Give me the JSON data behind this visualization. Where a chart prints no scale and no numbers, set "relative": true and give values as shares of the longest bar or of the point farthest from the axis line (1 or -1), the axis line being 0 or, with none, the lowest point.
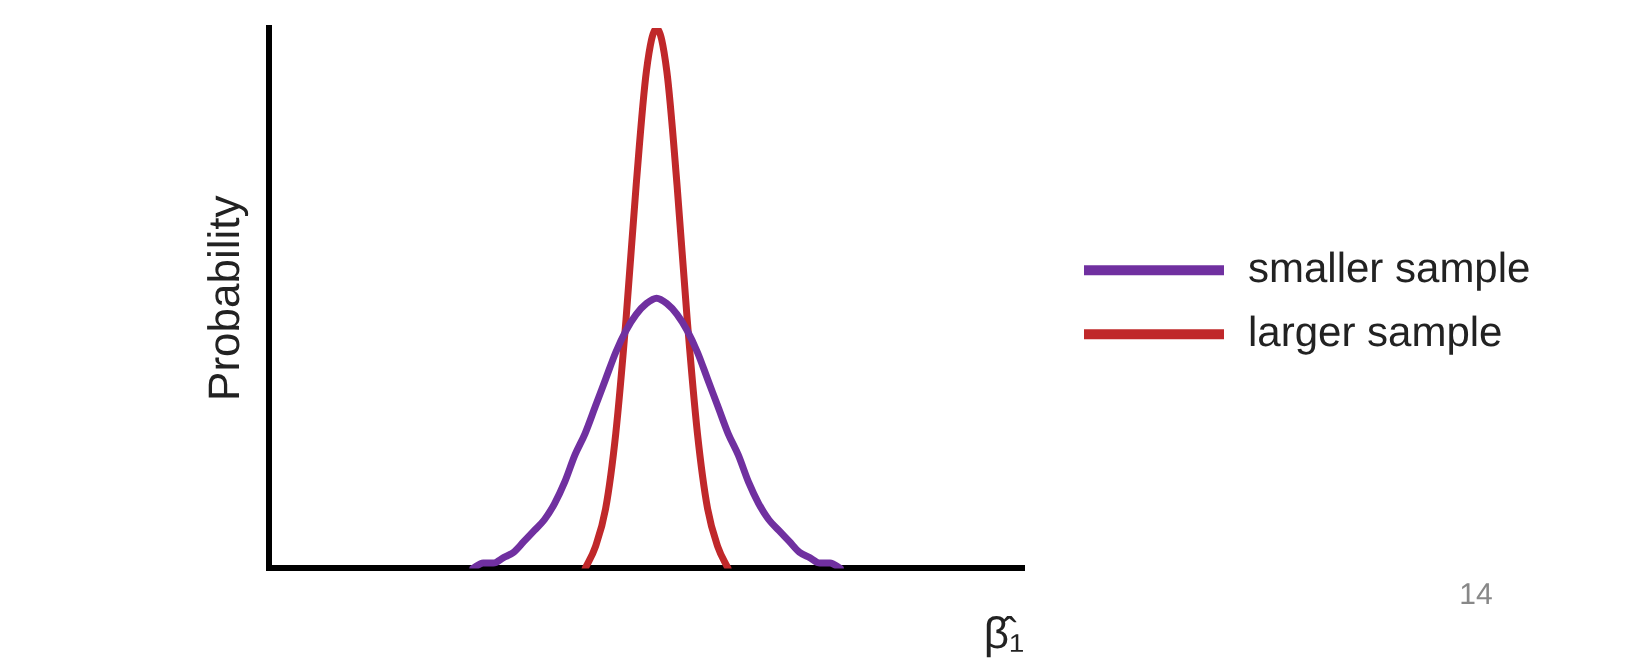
{
  "chart_data": {
    "type": "line",
    "relative": true,
    "ylabel": "Probability",
    "xlabel": "β̂₁",
    "legend": "right",
    "grid": false,
    "marker": "none",
    "line_style": "solid",
    "annotations": [
      "14"
    ],
    "categories": [
      null,
      null,
      null,
      null,
      null,
      null,
      null,
      null,
      null,
      null,
      null,
      null,
      null,
      null,
      null,
      null,
      null,
      null,
      null,
      null,
      null,
      null,
      null,
      null,
      null,
      null,
      null,
      null,
      null,
      null,
      null,
      null,
      null,
      null,
      null,
      null,
      null,
      null,
      null,
      null,
      null,
      null,
      null,
      null,
      null,
      null,
      null,
      null,
      null,
      null,
      null,
      null,
      null,
      null,
      null,
      null,
      null,
      null,
      null,
      null,
      null,
      null,
      null,
      null,
      null,
      null,
      null,
      null,
      null,
      null,
      null,
      null,
      null,
      null,
      null
    ],
    "series": [
      {
        "name": "smaller sample",
        "color": "#7030a0",
        "values": [
          null,
          null,
          null,
          null,
          null,
          null,
          null,
          null,
          null,
          null,
          null,
          null,
          null,
          null,
          null,
          null,
          null,
          null,
          null,
          null,
          0,
          0.01,
          0.01,
          0.02,
          0.03,
          0.05,
          0.07,
          0.09,
          0.12,
          0.16,
          0.21,
          0.25,
          0.3,
          0.35,
          0.4,
          0.44,
          0.47,
          0.49,
          0.5,
          0.49,
          0.47,
          0.44,
          0.4,
          0.35,
          0.3,
          0.25,
          0.21,
          0.16,
          0.12,
          0.09,
          0.07,
          0.05,
          0.03,
          0.02,
          0.01,
          0.01,
          0,
          null,
          null,
          null,
          null,
          null,
          null,
          null,
          null,
          null,
          null,
          null,
          null,
          null,
          null,
          null,
          null,
          null,
          null
        ]
      },
      {
        "name": "larger sample",
        "color": "#c0282a",
        "values": [
          null,
          null,
          null,
          null,
          null,
          null,
          null,
          null,
          null,
          null,
          null,
          null,
          null,
          null,
          null,
          null,
          null,
          null,
          null,
          null,
          null,
          null,
          null,
          null,
          null,
          null,
          null,
          null,
          null,
          null,
          null,
          0,
          0.04,
          0.11,
          0.25,
          0.46,
          0.71,
          0.92,
          1,
          0.92,
          0.71,
          0.46,
          0.25,
          0.11,
          0.04,
          0,
          null,
          null,
          null,
          null,
          null,
          null,
          null,
          null,
          null,
          null,
          null,
          null,
          null,
          null,
          null,
          null,
          null,
          null,
          null,
          null,
          null,
          null,
          null,
          null,
          null,
          null,
          null,
          null,
          null
        ]
      }
    ]
  }
}
